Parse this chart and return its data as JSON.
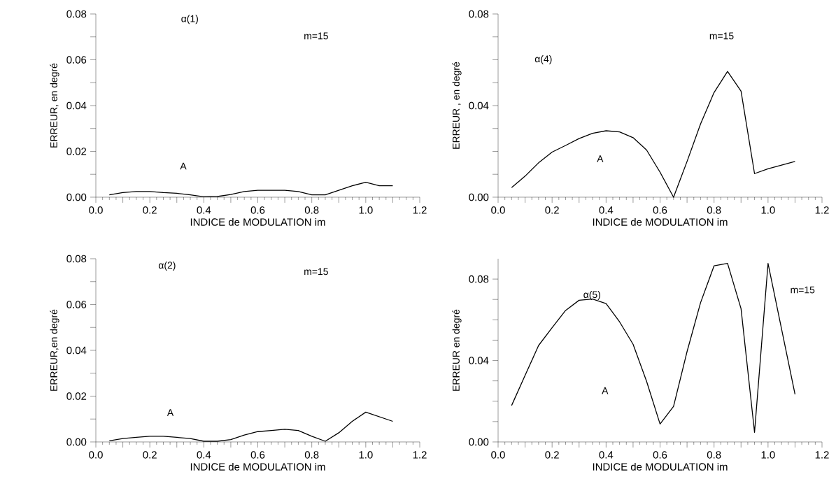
{
  "chart_data": [
    {
      "type": "line",
      "xlabel": "INDICE de MODULATION  im",
      "ylabel": "ERREUR, en degré",
      "annotations": [
        "α(1)",
        "m=15",
        "A"
      ],
      "color": "#000000",
      "x": [
        0.05,
        0.1,
        0.15,
        0.2,
        0.25,
        0.3,
        0.35,
        0.4,
        0.45,
        0.5,
        0.55,
        0.6,
        0.65,
        0.7,
        0.75,
        0.8,
        0.85,
        0.9,
        0.95,
        1.0,
        1.05,
        1.1
      ],
      "values": [
        0.001,
        0.002,
        0.0025,
        0.0025,
        0.002,
        0.0017,
        0.001,
        0.0002,
        0.0003,
        0.0012,
        0.0025,
        0.003,
        0.003,
        0.003,
        0.0025,
        0.001,
        0.001,
        0.003,
        0.005,
        0.0065,
        0.005,
        0.005
      ],
      "xlim": [
        0,
        1.2
      ],
      "ylim": [
        0,
        0.08
      ],
      "xticks": [
        {
          "value": 0,
          "label": "0.0"
        },
        {
          "value": 0.1,
          "label": null
        },
        {
          "value": 0.2,
          "label": "0.2"
        },
        {
          "value": 0.3,
          "label": null
        },
        {
          "value": 0.4,
          "label": "0.4"
        },
        {
          "value": 0.5,
          "label": null
        },
        {
          "value": 0.6,
          "label": "0.6"
        },
        {
          "value": 0.7,
          "label": null
        },
        {
          "value": 0.8,
          "label": "0.8"
        },
        {
          "value": 0.9,
          "label": null
        },
        {
          "value": 1.0,
          "label": "1.0"
        },
        {
          "value": 1.1,
          "label": null
        },
        {
          "value": 1.2,
          "label": "1.2"
        }
      ],
      "yticks": [
        {
          "value": 0,
          "label": "0.00"
        },
        {
          "value": 0.01,
          "label": null
        },
        {
          "value": 0.02,
          "label": "0.02"
        },
        {
          "value": 0.03,
          "label": null
        },
        {
          "value": 0.04,
          "label": "0.04"
        },
        {
          "value": 0.05,
          "label": null
        },
        {
          "value": 0.06,
          "label": "0.06"
        },
        {
          "value": 0.07,
          "label": null
        },
        {
          "value": 0.08,
          "label": "0.08"
        }
      ]
    },
    {
      "type": "line",
      "xlabel": "INDICE de MODULATION  im",
      "ylabel": "ERREUR , en degré",
      "annotations": [
        "m=15",
        "α(4)",
        "A"
      ],
      "color": "#000000",
      "x": [
        0.05,
        0.1,
        0.15,
        0.2,
        0.25,
        0.3,
        0.35,
        0.4,
        0.45,
        0.5,
        0.55,
        0.6,
        0.65,
        0.7,
        0.75,
        0.8,
        0.85,
        0.9,
        0.95,
        1.0,
        1.05,
        1.1
      ],
      "values": [
        0.0042,
        0.0092,
        0.015,
        0.0197,
        0.0226,
        0.0256,
        0.0279,
        0.029,
        0.0285,
        0.026,
        0.0206,
        0.0109,
        0.0,
        0.0156,
        0.032,
        0.0457,
        0.0549,
        0.0463,
        0.0103,
        0.0124,
        0.014,
        0.0156
      ],
      "xlim": [
        0,
        1.2
      ],
      "ylim": [
        0,
        0.08
      ],
      "xticks": [
        {
          "value": 0,
          "label": "0.0"
        },
        {
          "value": 0.1,
          "label": null
        },
        {
          "value": 0.2,
          "label": "0.2"
        },
        {
          "value": 0.3,
          "label": null
        },
        {
          "value": 0.4,
          "label": "0.4"
        },
        {
          "value": 0.5,
          "label": null
        },
        {
          "value": 0.6,
          "label": "0.6"
        },
        {
          "value": 0.7,
          "label": null
        },
        {
          "value": 0.8,
          "label": "0.8"
        },
        {
          "value": 0.9,
          "label": null
        },
        {
          "value": 1.0,
          "label": "1.0"
        },
        {
          "value": 1.1,
          "label": null
        },
        {
          "value": 1.2,
          "label": "1.2"
        }
      ],
      "yticks": [
        {
          "value": 0,
          "label": "0.00"
        },
        {
          "value": 0.01,
          "label": null
        },
        {
          "value": 0.02,
          "label": null
        },
        {
          "value": 0.03,
          "label": null
        },
        {
          "value": 0.04,
          "label": "0.04"
        },
        {
          "value": 0.05,
          "label": null
        },
        {
          "value": 0.06,
          "label": null
        },
        {
          "value": 0.07,
          "label": null
        },
        {
          "value": 0.08,
          "label": "0.08"
        }
      ]
    },
    {
      "type": "line",
      "xlabel": "INDICE de MODULATION  im",
      "ylabel": "ERREUR,en degré",
      "annotations": [
        "α(2)",
        "m=15",
        "A"
      ],
      "color": "#000000",
      "x": [
        0.05,
        0.1,
        0.15,
        0.2,
        0.25,
        0.3,
        0.35,
        0.4,
        0.45,
        0.5,
        0.55,
        0.6,
        0.65,
        0.7,
        0.75,
        0.8,
        0.85,
        0.9,
        0.95,
        1.0,
        1.05,
        1.1
      ],
      "values": [
        0.0005,
        0.0015,
        0.002,
        0.0025,
        0.0025,
        0.002,
        0.0015,
        0.0003,
        0.0003,
        0.001,
        0.003,
        0.0045,
        0.005,
        0.0055,
        0.005,
        0.0025,
        0.0003,
        0.004,
        0.009,
        0.013,
        0.011,
        0.009
      ],
      "xlim": [
        0,
        1.2
      ],
      "ylim": [
        0,
        0.08
      ],
      "xticks": [
        {
          "value": 0,
          "label": "0.0"
        },
        {
          "value": 0.1,
          "label": null
        },
        {
          "value": 0.2,
          "label": "0.2"
        },
        {
          "value": 0.3,
          "label": null
        },
        {
          "value": 0.4,
          "label": "0.4"
        },
        {
          "value": 0.5,
          "label": null
        },
        {
          "value": 0.6,
          "label": "0.6"
        },
        {
          "value": 0.7,
          "label": null
        },
        {
          "value": 0.8,
          "label": "0.8"
        },
        {
          "value": 0.9,
          "label": null
        },
        {
          "value": 1.0,
          "label": "1.0"
        },
        {
          "value": 1.1,
          "label": null
        },
        {
          "value": 1.2,
          "label": "1.2"
        }
      ],
      "yticks": [
        {
          "value": 0,
          "label": "0.00"
        },
        {
          "value": 0.01,
          "label": null
        },
        {
          "value": 0.02,
          "label": "0.02"
        },
        {
          "value": 0.03,
          "label": null
        },
        {
          "value": 0.04,
          "label": "0.04"
        },
        {
          "value": 0.05,
          "label": null
        },
        {
          "value": 0.06,
          "label": "0.06"
        },
        {
          "value": 0.07,
          "label": null
        },
        {
          "value": 0.08,
          "label": "0.08"
        }
      ]
    },
    {
      "type": "line",
      "xlabel": "INDICE de MODULATION im",
      "ylabel": "ERREUR en degré",
      "annotations": [
        "α(5)",
        "m=15",
        "A"
      ],
      "color": "#000000",
      "x": [
        0.05,
        0.1,
        0.15,
        0.2,
        0.25,
        0.3,
        0.35,
        0.4,
        0.45,
        0.5,
        0.55,
        0.6,
        0.65,
        0.7,
        0.75,
        0.8,
        0.85,
        0.9,
        0.95,
        1.0,
        1.1
      ],
      "values": [
        0.0179,
        0.0327,
        0.0474,
        0.0561,
        0.0646,
        0.0696,
        0.0702,
        0.068,
        0.059,
        0.048,
        0.0298,
        0.0088,
        0.0175,
        0.0444,
        0.0684,
        0.0865,
        0.0877,
        0.0655,
        0.0047,
        0.0877,
        0.0234
      ],
      "xlim": [
        0,
        1.2
      ],
      "ylim": [
        0,
        0.09
      ],
      "xticks": [
        {
          "value": 0,
          "label": "0.0"
        },
        {
          "value": 0.1,
          "label": null
        },
        {
          "value": 0.2,
          "label": "0.2"
        },
        {
          "value": 0.3,
          "label": null
        },
        {
          "value": 0.4,
          "label": "0.4"
        },
        {
          "value": 0.5,
          "label": null
        },
        {
          "value": 0.6,
          "label": "0.6"
        },
        {
          "value": 0.7,
          "label": null
        },
        {
          "value": 0.8,
          "label": "0.8"
        },
        {
          "value": 0.9,
          "label": null
        },
        {
          "value": 1.0,
          "label": "1.0"
        },
        {
          "value": 1.1,
          "label": null
        },
        {
          "value": 1.2,
          "label": "1.2"
        }
      ],
      "yticks": [
        {
          "value": 0,
          "label": "0.00"
        },
        {
          "value": 0.01,
          "label": null
        },
        {
          "value": 0.02,
          "label": null
        },
        {
          "value": 0.03,
          "label": null
        },
        {
          "value": 0.04,
          "label": "0.04"
        },
        {
          "value": 0.05,
          "label": null
        },
        {
          "value": 0.06,
          "label": null
        },
        {
          "value": 0.07,
          "label": null
        },
        {
          "value": 0.08,
          "label": "0.08"
        }
      ]
    }
  ]
}
